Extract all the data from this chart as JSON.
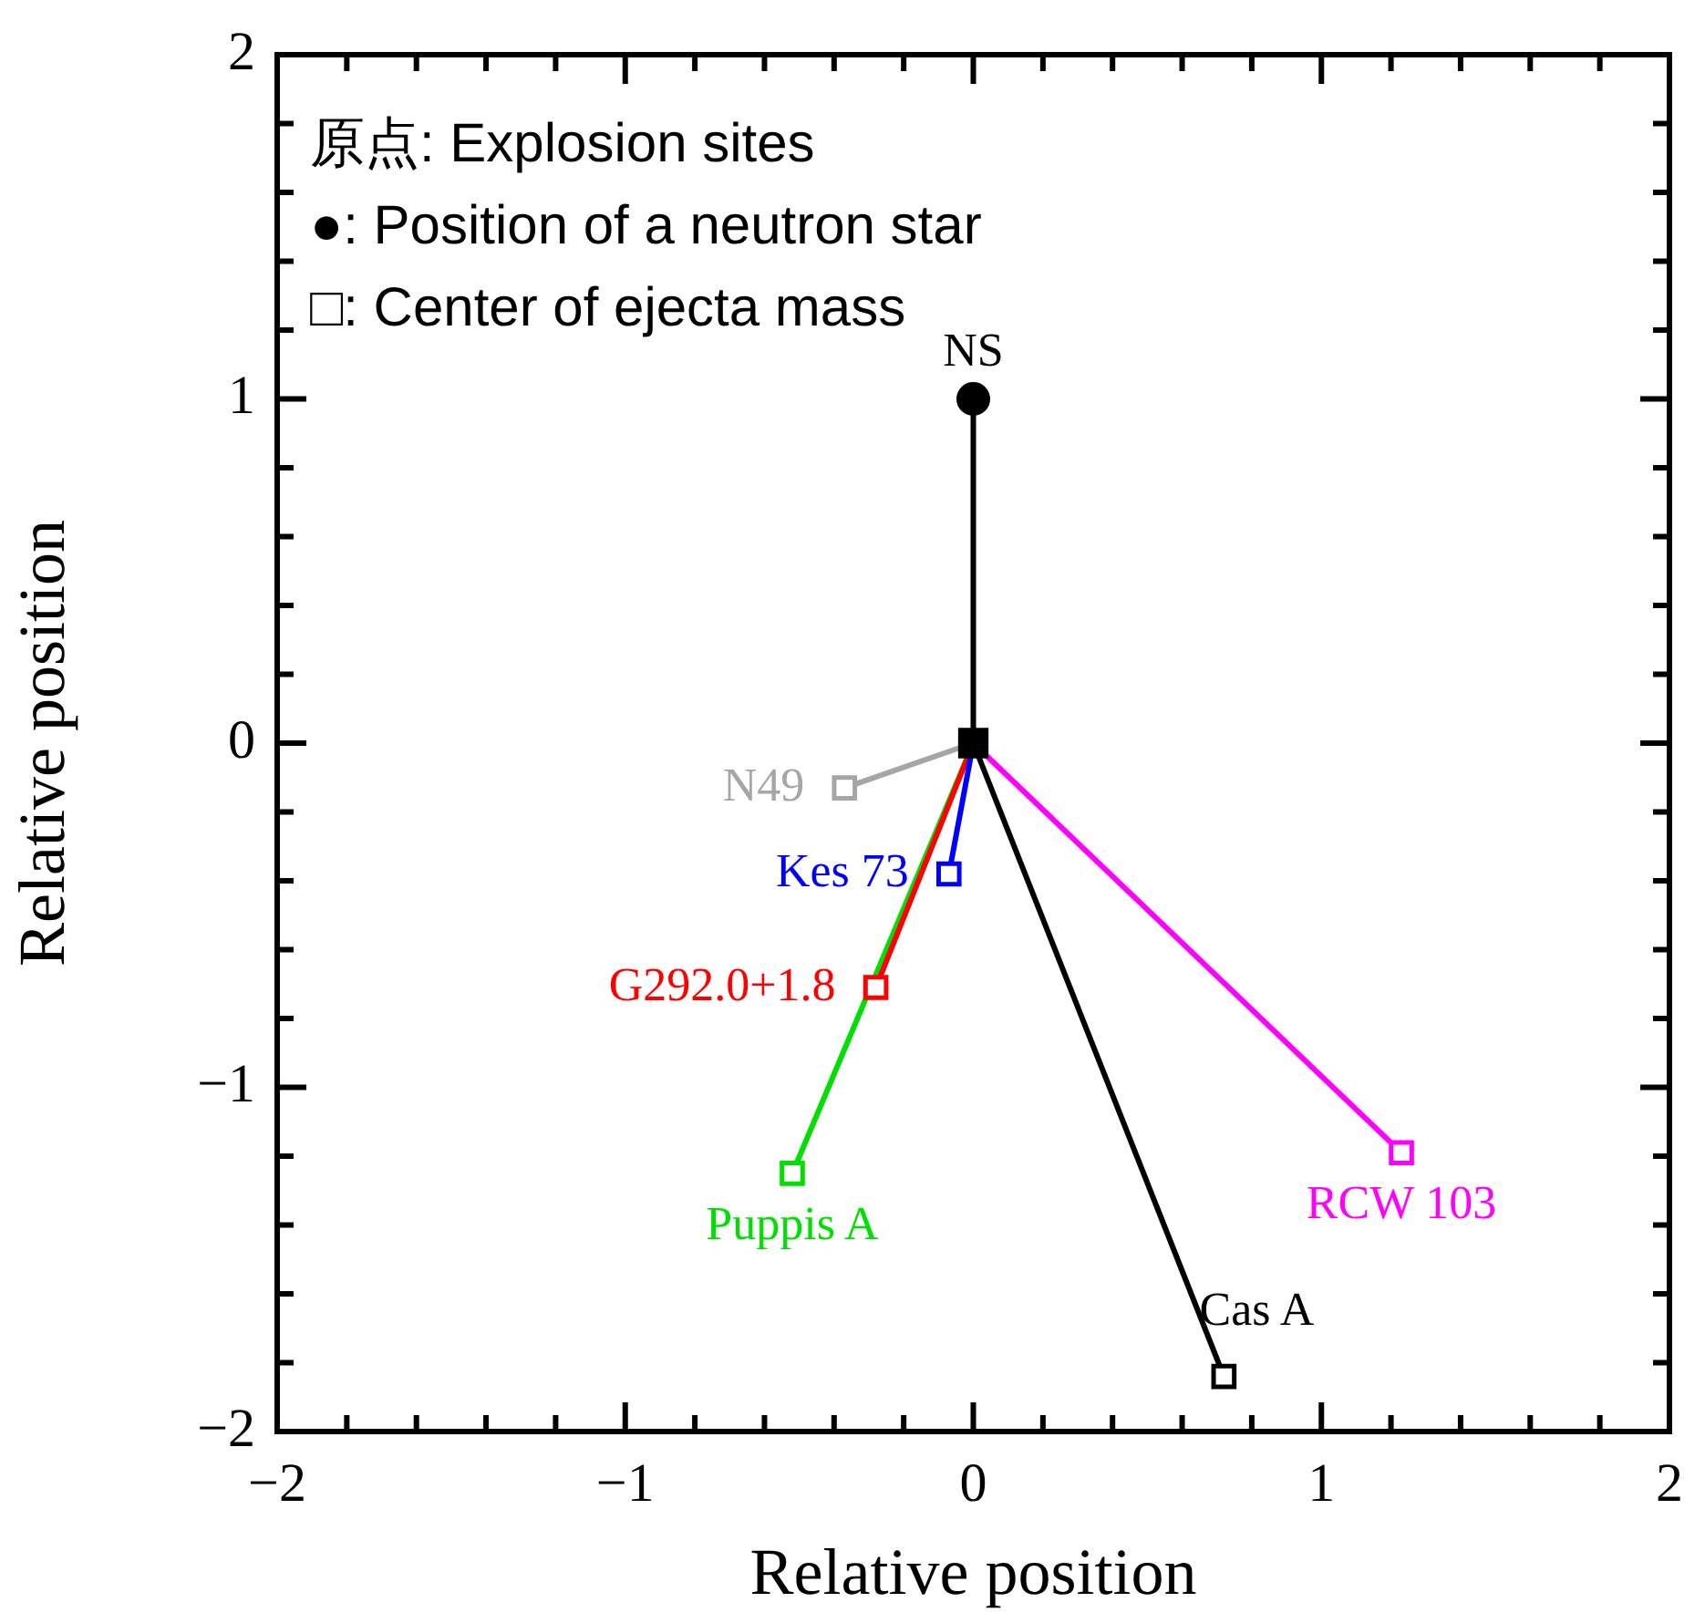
{
  "chart_data": {
    "type": "line",
    "xlabel": "Relative position",
    "ylabel": "Relative position",
    "xlim": [
      -2,
      2
    ],
    "ylim": [
      -2,
      2
    ],
    "xticks": [
      {
        "value": -2,
        "label": "−2"
      },
      {
        "value": -1.8,
        "label": null
      },
      {
        "value": -1.6,
        "label": null
      },
      {
        "value": -1.4,
        "label": null
      },
      {
        "value": -1.2,
        "label": null
      },
      {
        "value": -1,
        "label": "−1"
      },
      {
        "value": -0.8,
        "label": null
      },
      {
        "value": -0.6,
        "label": null
      },
      {
        "value": -0.4,
        "label": null
      },
      {
        "value": -0.2,
        "label": null
      },
      0,
      {
        "value": 0.2,
        "label": null
      },
      {
        "value": 0.4,
        "label": null
      },
      {
        "value": 0.6,
        "label": null
      },
      {
        "value": 0.8,
        "label": null
      },
      1,
      {
        "value": 1.2,
        "label": null
      },
      {
        "value": 1.4,
        "label": null
      },
      {
        "value": 1.6,
        "label": null
      },
      {
        "value": 1.8,
        "label": null
      },
      2
    ],
    "yticks": [
      {
        "value": -2,
        "label": "−2"
      },
      {
        "value": -1.8,
        "label": null
      },
      {
        "value": -1.6,
        "label": null
      },
      {
        "value": -1.4,
        "label": null
      },
      {
        "value": -1.2,
        "label": null
      },
      {
        "value": -1,
        "label": "−1"
      },
      {
        "value": -0.8,
        "label": null
      },
      {
        "value": -0.6,
        "label": null
      },
      {
        "value": -0.4,
        "label": null
      },
      {
        "value": -0.2,
        "label": null
      },
      0,
      {
        "value": 0.2,
        "label": null
      },
      {
        "value": 0.4,
        "label": null
      },
      {
        "value": 0.6,
        "label": null
      },
      {
        "value": 0.8,
        "label": null
      },
      1,
      {
        "value": 1.2,
        "label": null
      },
      {
        "value": 1.4,
        "label": null
      },
      {
        "value": 1.6,
        "label": null
      },
      {
        "value": 1.8,
        "label": null
      },
      2
    ],
    "grid": false,
    "legend": false,
    "annotations": [
      "原点: Explosion sites",
      "●: Position of a neutron star",
      "□: Center of ejecta mass"
    ],
    "series": [
      {
        "name": "NS",
        "color": "#000000",
        "marker": "circle",
        "x": [
          0,
          0
        ],
        "values": [
          0,
          1
        ]
      },
      {
        "name": "N49",
        "color": "#a6a6a6",
        "marker": "square",
        "x": [
          0,
          -0.37
        ],
        "values": [
          0,
          -0.13
        ]
      },
      {
        "name": "Kes 73",
        "color": "#0000ff",
        "marker": "square",
        "x": [
          0,
          -0.07
        ],
        "values": [
          0,
          -0.38
        ]
      },
      {
        "name": "G292.0+1.8",
        "color": "#ff0000",
        "marker": "square",
        "x": [
          0,
          -0.28
        ],
        "values": [
          0,
          -0.71
        ]
      },
      {
        "name": "Puppis A",
        "color": "#00e000",
        "marker": "square",
        "x": [
          0,
          -0.52
        ],
        "values": [
          0,
          -1.25
        ]
      },
      {
        "name": "RCW 103",
        "color": "#ff00ff",
        "marker": "square",
        "x": [
          0,
          1.23
        ],
        "values": [
          0,
          -1.19
        ]
      },
      {
        "name": "Cas A",
        "color": "#000000",
        "marker": "square",
        "x": [
          0,
          0.72
        ],
        "values": [
          0,
          -1.84
        ]
      },
      {
        "type": "scatter",
        "color": "#000000",
        "marker": "square",
        "x": [
          0
        ],
        "values": [
          0
        ]
      }
    ]
  }
}
